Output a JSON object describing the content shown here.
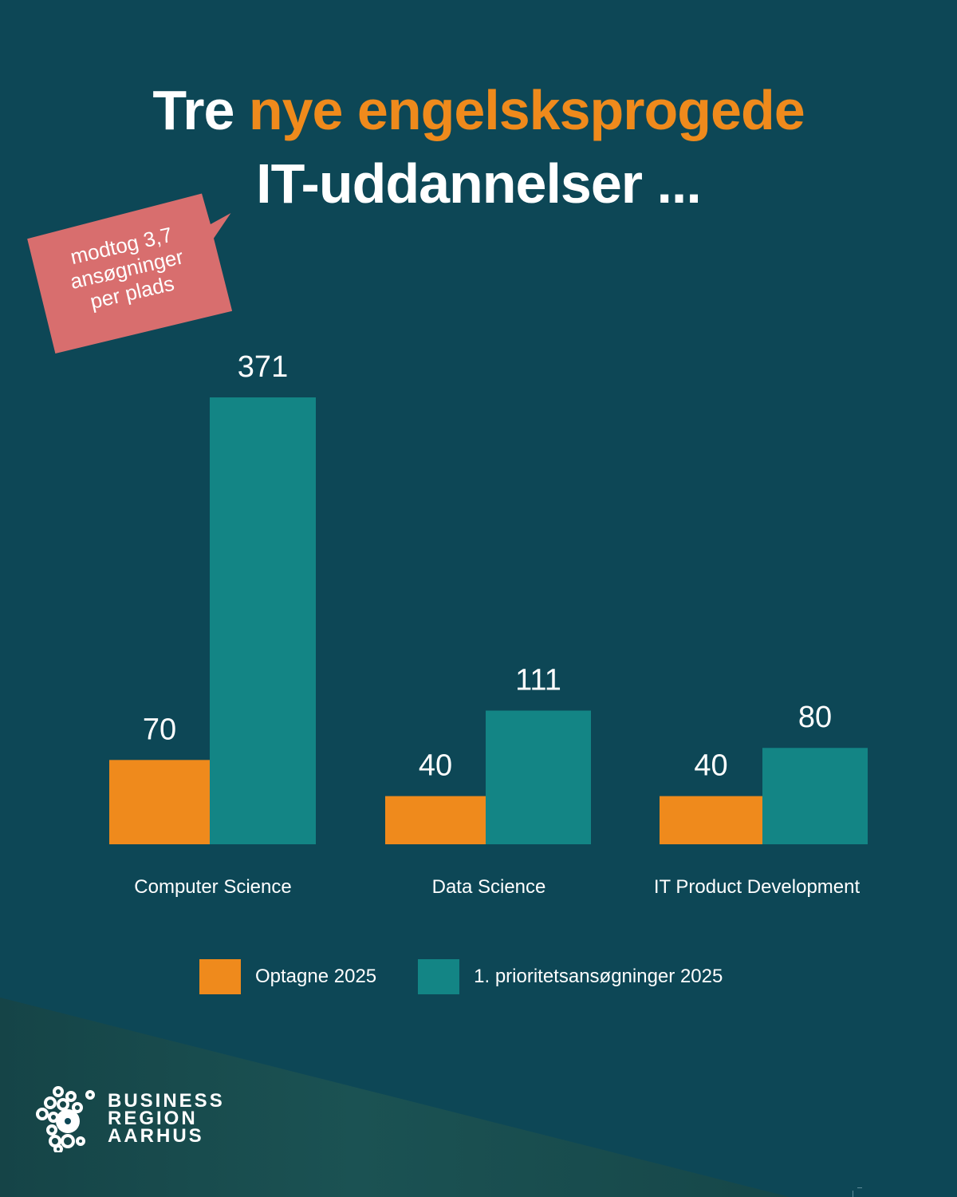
{
  "title": {
    "line1_prefix": "Tre",
    "line1_accent": "nye engelsksprogede",
    "line2": "IT-uddannelser ..."
  },
  "callout": {
    "lines": [
      "modtog 3,7",
      "ansøgninger",
      "per plads"
    ]
  },
  "colors": {
    "background": "#0d4756",
    "background_lower": "#1a5052",
    "accent_orange": "#ef8a1c",
    "teal": "#138585",
    "callout": "#d86e6e",
    "text": "#ffffff"
  },
  "chart_data": {
    "type": "bar",
    "title": "Tre nye engelsksprogede IT-uddannelser ...",
    "xlabel": "",
    "ylabel": "",
    "categories": [
      "Computer Science",
      "Data Science",
      "IT Product Development"
    ],
    "series": [
      {
        "name": "Optagne 2025",
        "color": "#ef8a1c",
        "values": [
          70,
          40,
          40
        ]
      },
      {
        "name": "1.  prioritetsansøgninger 2025",
        "color": "#138585",
        "values": [
          371,
          111,
          80
        ]
      }
    ],
    "ylim": [
      0,
      371
    ],
    "grid": false,
    "data_labels": true,
    "legend_position": "bottom"
  },
  "legend": [
    {
      "label": "Optagne 2025",
      "color": "#ef8a1c"
    },
    {
      "label": "1.  prioritetsansøgninger 2025",
      "color": "#138585"
    }
  ],
  "logo": {
    "lines": [
      "BUSINESS",
      "REGION",
      "AARHUS"
    ]
  }
}
